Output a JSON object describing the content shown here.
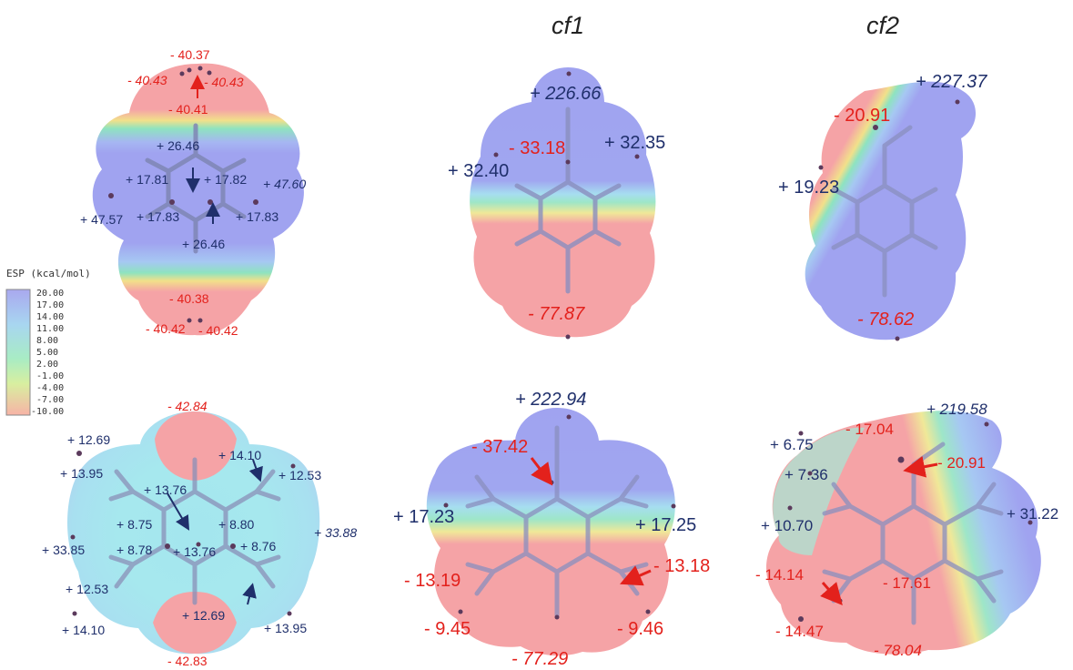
{
  "headers": {
    "col2": "cf1",
    "col3": "cf2"
  },
  "colors": {
    "positive": "#1f2f6b",
    "negative": "#e3211c",
    "blue": "#9b9ef0",
    "red": "#f5a3a6",
    "cyan": "#a6eaf0"
  },
  "legend": {
    "title": "ESP (kcal/mol)",
    "ticks": [
      "20.00",
      "17.00",
      "14.00",
      "11.00",
      "8.00",
      "5.00",
      "2.00",
      "-1.00",
      "-4.00",
      "-7.00",
      "-10.00"
    ]
  },
  "panels": {
    "p1": {
      "labels": [
        "- 40.37",
        "- 40.43",
        "- 40.43",
        "- 40.41",
        "+ 26.46",
        "+ 17.81",
        "+ 17.82",
        "+ 47.60",
        "+ 47.57",
        "+ 17.83",
        "+ 17.83",
        "+ 26.46",
        "- 40.38",
        "- 40.42",
        "- 40.42"
      ]
    },
    "p2": {
      "labels": [
        "+ 226.66",
        "- 33.18",
        "+ 32.35",
        "+ 32.40",
        "- 77.87"
      ]
    },
    "p3": {
      "labels": [
        "+ 227.37",
        "- 20.91",
        "+ 19.23",
        "- 78.62"
      ]
    },
    "p4": {
      "labels": [
        "- 42.84",
        "+ 12.69",
        "+ 13.95",
        "+ 14.10",
        "+ 12.53",
        "+ 13.76",
        "+ 8.75",
        "+ 8.80",
        "+ 33.88",
        "+ 33.85",
        "+ 8.78",
        "+ 13.76",
        "+ 8.76",
        "+ 12.53",
        "+ 12.69",
        "+ 14.10",
        "+ 13.95",
        "- 42.83"
      ]
    },
    "p5": {
      "labels": [
        "+ 222.94",
        "- 37.42",
        "+ 17.23",
        "+ 17.25",
        "- 13.19",
        "- 13.18",
        "- 9.45",
        "- 9.46",
        "- 77.29"
      ]
    },
    "p6": {
      "labels": [
        "+ 219.58",
        "- 17.04",
        "+ 6.75",
        "+ 7.36",
        "- 20.91",
        "+ 10.70",
        "+ 31.22",
        "- 14.14",
        "- 17.61",
        "- 14.47",
        "- 78.04"
      ]
    }
  }
}
